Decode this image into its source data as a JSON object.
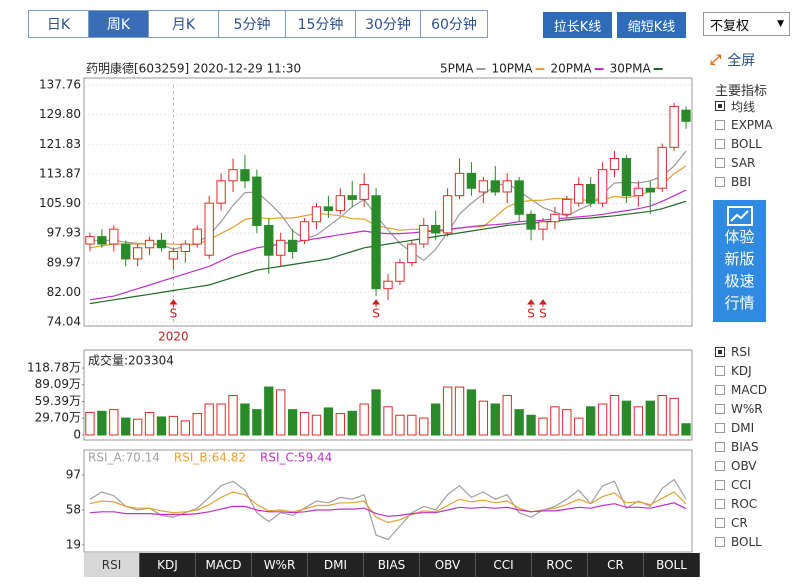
{
  "toolbar": {
    "periods": [
      "日K",
      "周K",
      "月K",
      "5分钟",
      "15分钟",
      "30分钟",
      "60分钟"
    ],
    "active_period": 1,
    "buttons": [
      "拉长K线",
      "缩短K线"
    ],
    "adjust": "不复权"
  },
  "side": {
    "fullscreen": "全屏",
    "indicator_title": "主要指标",
    "overlays": [
      {
        "label": "均线",
        "checked": true
      },
      {
        "label": "EXPMA",
        "checked": false
      },
      {
        "label": "BOLL",
        "checked": false
      },
      {
        "label": "SAR",
        "checked": false
      },
      {
        "label": "BBI",
        "checked": false
      }
    ],
    "promo": [
      "体验",
      "新版",
      "极速",
      "行情"
    ],
    "sub_indicators": [
      {
        "label": "RSI",
        "checked": true
      },
      {
        "label": "KDJ",
        "checked": false
      },
      {
        "label": "MACD",
        "checked": false
      },
      {
        "label": "W%R",
        "checked": false
      },
      {
        "label": "DMI",
        "checked": false
      },
      {
        "label": "BIAS",
        "checked": false
      },
      {
        "label": "OBV",
        "checked": false
      },
      {
        "label": "CCI",
        "checked": false
      },
      {
        "label": "ROC",
        "checked": false
      },
      {
        "label": "CR",
        "checked": false
      },
      {
        "label": "BOLL",
        "checked": false
      }
    ]
  },
  "bottom_tabs": {
    "items": [
      "RSI",
      "KDJ",
      "MACD",
      "W%R",
      "DMI",
      "BIAS",
      "OBV",
      "CCI",
      "ROC",
      "CR",
      "BOLL"
    ],
    "active": 0
  },
  "chart_data": [
    {
      "type": "candlestick",
      "title": "药明康德[603259] 2020-12-29 11:30",
      "up_color": "#e02a2a",
      "down_color": "#2a8a2a",
      "grid": true,
      "categories": [
        null,
        null,
        null,
        null,
        null,
        null,
        null,
        "2020",
        null,
        null,
        null,
        null,
        null,
        null,
        null,
        null,
        null,
        null,
        null,
        null,
        null,
        null,
        null,
        null,
        null,
        null,
        null,
        null,
        null,
        null,
        null,
        null,
        null,
        null,
        null,
        null,
        null,
        null,
        null,
        null,
        null,
        null,
        null,
        null,
        null,
        null,
        null,
        null,
        null,
        null,
        null
      ],
      "signals": [
        null,
        null,
        null,
        null,
        null,
        null,
        null,
        "S",
        null,
        null,
        null,
        null,
        null,
        null,
        null,
        null,
        null,
        null,
        null,
        null,
        null,
        null,
        null,
        null,
        "S",
        null,
        null,
        null,
        null,
        null,
        null,
        null,
        null,
        null,
        null,
        null,
        null,
        "S",
        "S",
        null,
        null,
        null,
        null,
        null,
        null,
        null,
        null,
        null,
        null,
        null,
        null
      ],
      "open": [
        95,
        97,
        95,
        95,
        91,
        94,
        96,
        91,
        93,
        95,
        92,
        106,
        112,
        115,
        113,
        100,
        92,
        96,
        96,
        101,
        105,
        104,
        108,
        107,
        108,
        83,
        85,
        90,
        95,
        100,
        98,
        108,
        114,
        109,
        112,
        109,
        112,
        103,
        99,
        101,
        103,
        106,
        111,
        106,
        115,
        118,
        108,
        110,
        110,
        121,
        131
      ],
      "high": [
        98,
        99,
        100,
        96,
        95,
        97,
        98,
        94,
        96,
        100,
        108,
        114,
        118,
        119,
        115,
        102,
        98,
        99,
        102,
        106,
        108,
        110,
        112,
        114,
        110,
        87,
        91,
        96,
        102,
        104,
        110,
        118,
        117,
        113,
        116,
        114,
        113,
        104,
        102,
        105,
        108,
        113,
        113,
        117,
        120,
        119,
        112,
        112,
        122,
        133,
        132
      ],
      "low": [
        93,
        94,
        93,
        89,
        89,
        92,
        93,
        88,
        90,
        94,
        91,
        104,
        109,
        110,
        98,
        87,
        89,
        91,
        95,
        99,
        102,
        103,
        105,
        105,
        81,
        80,
        84,
        89,
        94,
        96,
        97,
        107,
        108,
        106,
        108,
        106,
        101,
        96,
        96,
        99,
        102,
        105,
        105,
        105,
        113,
        106,
        105,
        103,
        109,
        120,
        126
      ],
      "close": [
        97,
        95,
        99,
        91,
        94,
        96,
        94,
        93,
        95,
        99,
        106,
        112,
        115,
        112,
        100,
        92,
        96,
        93,
        101,
        105,
        104,
        108,
        107,
        111,
        83,
        85,
        90,
        95,
        100,
        98,
        108,
        114,
        110,
        112,
        109,
        112,
        103,
        99,
        101,
        103,
        107,
        111,
        106,
        115,
        118,
        108,
        110,
        109,
        121,
        132,
        128
      ],
      "series": [
        {
          "name": "5PMA",
          "color": "#9a9a9a",
          "values": [
            96,
            96,
            96,
            95.5,
            95.2,
            95,
            94.8,
            93.6,
            94.4,
            95.4,
            97.4,
            101,
            105.4,
            108.8,
            109,
            106.2,
            103,
            98.6,
            96.4,
            97.4,
            99.8,
            102.2,
            105,
            107,
            102.6,
            98.8,
            95.2,
            92.8,
            90.6,
            93.6,
            98.2,
            103,
            106,
            108.4,
            110.6,
            111.4,
            109.2,
            107,
            104.8,
            103.6,
            102.6,
            104.2,
            105.6,
            108.4,
            111.4,
            111.6,
            111.4,
            112,
            113.2,
            116,
            120
          ]
        },
        {
          "name": "10PMA",
          "color": "#e8a030",
          "values": [
            94,
            94.5,
            95,
            95,
            95,
            95,
            95,
            95,
            94.8,
            94.9,
            96.2,
            97.9,
            99.5,
            101.6,
            102.2,
            101.8,
            102,
            102,
            102.6,
            103.2,
            103,
            102.6,
            101.8,
            101.7,
            100,
            99.3,
            98.7,
            99,
            98.9,
            98.3,
            98.7,
            99.3,
            99.6,
            99.7,
            102.3,
            105,
            106.3,
            106.7,
            106.8,
            107.3,
            107.2,
            107,
            106.6,
            106.9,
            107.8,
            107.4,
            108.1,
            109.1,
            111,
            113.9,
            116
          ]
        },
        {
          "name": "20PMA",
          "color": "#c030c8",
          "values": [
            80,
            80.5,
            81,
            82,
            83,
            84,
            85,
            86,
            87,
            88,
            89,
            90.5,
            92,
            93,
            94,
            94.5,
            95,
            95.5,
            96,
            96.5,
            97,
            97.5,
            98,
            98.5,
            98,
            97.8,
            97.8,
            98,
            98.3,
            98.5,
            99,
            99.3,
            99.7,
            100,
            100.2,
            100.5,
            101,
            101.2,
            101.4,
            101.8,
            102,
            102.3,
            102.6,
            103,
            103.5,
            104,
            104.5,
            105.2,
            106.5,
            108,
            109.5
          ]
        },
        {
          "name": "30PMA",
          "color": "#1f6a2a",
          "values": [
            79,
            79.5,
            80,
            80.5,
            81,
            81.5,
            82,
            82.5,
            83,
            83.5,
            84,
            85,
            86,
            87,
            88,
            88.5,
            89,
            89.5,
            90,
            90.5,
            91,
            92,
            93,
            94,
            94.5,
            95,
            95.5,
            96,
            96.5,
            97,
            97.5,
            98,
            98.5,
            99,
            99.5,
            100,
            100.3,
            100.6,
            100.9,
            101.2,
            101.5,
            101.8,
            102,
            102.3,
            102.6,
            103,
            103.4,
            103.8,
            104.5,
            105.5,
            106.5
          ]
        }
      ],
      "ylim": [
        74.04,
        137.76
      ],
      "yticks": [
        74.04,
        {
          "value": 82,
          "label": "82.00"
        },
        89.97,
        97.93,
        {
          "value": 105.9,
          "label": "105.90"
        },
        113.87,
        121.83,
        {
          "value": 129.8,
          "label": "129.80"
        },
        137.76
      ]
    },
    {
      "type": "bar",
      "title": "成交量:203304",
      "values": [
        40,
        42,
        45,
        30,
        28,
        40,
        32,
        33,
        25,
        38,
        55,
        55,
        70,
        55,
        45,
        85,
        80,
        45,
        40,
        35,
        48,
        38,
        42,
        55,
        80,
        50,
        35,
        35,
        30,
        55,
        85,
        85,
        80,
        60,
        55,
        70,
        45,
        35,
        30,
        50,
        45,
        30,
        50,
        55,
        70,
        60,
        50,
        60,
        70,
        65,
        20
      ],
      "ylim": [
        0,
        118.78
      ],
      "yticks": [
        0,
        {
          "value": 29.7,
          "label": "29.70万"
        },
        {
          "value": 59.39,
          "label": "59.39万"
        },
        {
          "value": 89.09,
          "label": "89.09万"
        },
        {
          "value": 118.78,
          "label": "118.78万"
        }
      ]
    },
    {
      "type": "line",
      "series": [
        {
          "name": "RSI_A:70.14",
          "color": "#a0a0a0",
          "values": [
            70,
            78,
            74,
            62,
            58,
            60,
            52,
            50,
            55,
            60,
            72,
            85,
            90,
            80,
            55,
            45,
            55,
            52,
            60,
            68,
            66,
            72,
            70,
            75,
            30,
            25,
            40,
            55,
            62,
            58,
            75,
            85,
            72,
            78,
            70,
            75,
            55,
            50,
            58,
            62,
            70,
            80,
            65,
            85,
            90,
            60,
            68,
            62,
            82,
            92,
            70.14
          ]
        },
        {
          "name": "RSI_B:64.82",
          "color": "#e8a030",
          "values": [
            65,
            68,
            67,
            62,
            60,
            60,
            57,
            55,
            56,
            58,
            64,
            72,
            78,
            75,
            64,
            57,
            58,
            56,
            59,
            63,
            63,
            66,
            66,
            68,
            50,
            44,
            47,
            53,
            57,
            56,
            63,
            70,
            67,
            69,
            66,
            68,
            60,
            56,
            58,
            60,
            64,
            70,
            65,
            73,
            77,
            66,
            67,
            64,
            71,
            78,
            64.82
          ]
        },
        {
          "name": "RSI_C:59.44",
          "color": "#c030c8",
          "values": [
            55,
            56,
            56,
            54,
            54,
            54,
            53,
            53,
            53,
            54,
            56,
            59,
            62,
            62,
            58,
            56,
            56,
            55,
            56,
            58,
            58,
            59,
            59,
            60,
            54,
            51,
            52,
            54,
            55,
            55,
            58,
            61,
            60,
            61,
            60,
            61,
            58,
            56,
            57,
            57,
            59,
            61,
            60,
            63,
            65,
            61,
            61,
            60,
            63,
            66,
            59.44
          ]
        }
      ],
      "ylim": [
        13.4,
        122.6
      ],
      "yticks": [
        19,
        58,
        97
      ]
    }
  ]
}
